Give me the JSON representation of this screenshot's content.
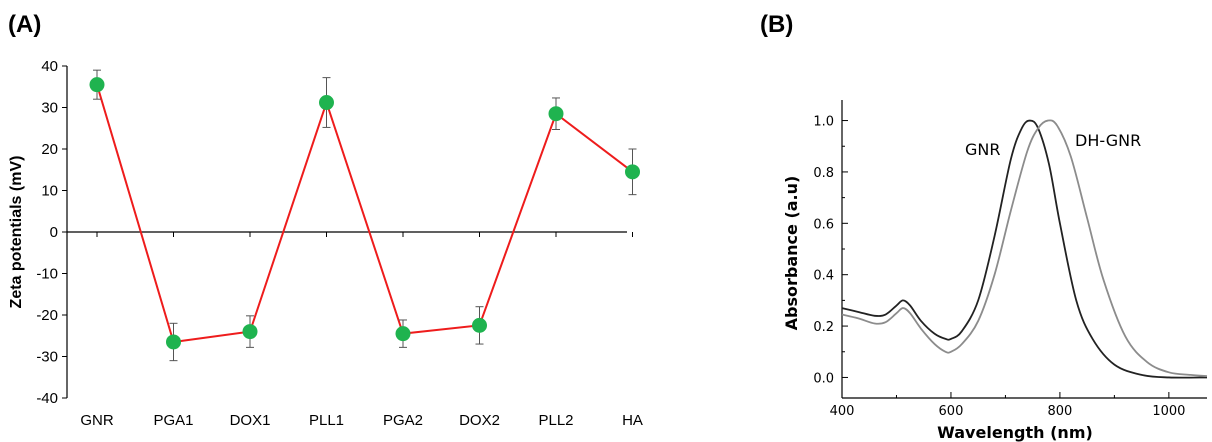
{
  "panels": {
    "a_label": "(A)",
    "b_label": "(B)"
  },
  "colors": {
    "line_a": "#ee1c1c",
    "marker_a": "#1fb34f",
    "errorbar_a": "#555555",
    "gnr_curve": "#222222",
    "dhgnr_curve": "#8c8c8c"
  },
  "chart_data": [
    {
      "type": "line",
      "panel": "(A)",
      "xlabel": "",
      "ylabel": "Zeta potentials (mV)",
      "categories": [
        "GNR",
        "PGA1",
        "DOX1",
        "PLL1",
        "PGA2",
        "DOX2",
        "PLL2",
        "HA"
      ],
      "ylim": [
        -40,
        40
      ],
      "yticks": [
        40,
        30,
        20,
        10,
        0,
        -10,
        -20,
        -30,
        -40
      ],
      "series": [
        {
          "values": [
            35.5,
            -26.5,
            -24,
            31.2,
            -24.5,
            -22.5,
            28.5,
            14.5
          ],
          "errors": [
            3.5,
            4.5,
            3.8,
            6,
            3.3,
            4.5,
            3.8,
            5.5
          ]
        }
      ],
      "grid": false
    },
    {
      "type": "line",
      "panel": "(B)",
      "xlabel": "Wavelength (nm)",
      "ylabel": "Absorbance (a.u)",
      "xlim": [
        400,
        1070
      ],
      "ylim": [
        -0.08,
        1.08
      ],
      "xticks": [
        400,
        600,
        800,
        1000
      ],
      "yticks": [
        "0.0",
        "0.2",
        "0.4",
        "0.6",
        "0.8",
        "1.0"
      ],
      "series": [
        {
          "name": "GNR",
          "x": [
            400,
            430,
            460,
            480,
            500,
            512,
            525,
            545,
            570,
            590,
            600,
            620,
            650,
            680,
            710,
            730,
            745,
            760,
            780,
            800,
            830,
            860,
            900,
            950,
            1000,
            1070
          ],
          "y": [
            0.27,
            0.255,
            0.24,
            0.245,
            0.28,
            0.3,
            0.28,
            0.22,
            0.17,
            0.15,
            0.15,
            0.18,
            0.3,
            0.55,
            0.85,
            0.97,
            1.0,
            0.97,
            0.83,
            0.6,
            0.3,
            0.15,
            0.05,
            0.01,
            0.0,
            0.0
          ]
        },
        {
          "name": "DH-GNR",
          "x": [
            400,
            430,
            460,
            480,
            500,
            512,
            525,
            545,
            570,
            590,
            600,
            620,
            650,
            680,
            710,
            740,
            760,
            778,
            795,
            820,
            850,
            880,
            920,
            960,
            1000,
            1040,
            1070
          ],
          "y": [
            0.245,
            0.23,
            0.21,
            0.215,
            0.25,
            0.27,
            0.25,
            0.19,
            0.13,
            0.1,
            0.1,
            0.13,
            0.22,
            0.4,
            0.65,
            0.88,
            0.97,
            1.0,
            0.98,
            0.86,
            0.62,
            0.38,
            0.16,
            0.06,
            0.02,
            0.01,
            0.005
          ]
        }
      ],
      "grid": false
    }
  ]
}
